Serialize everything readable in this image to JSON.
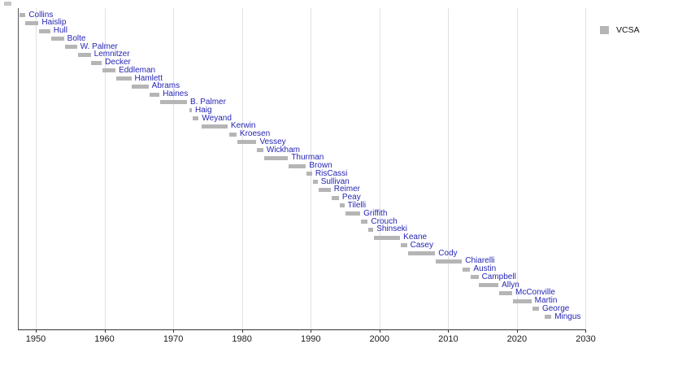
{
  "chart_data": {
    "type": "bar",
    "subtype": "horizontal-timeline-gantt",
    "title": "",
    "xlabel": "",
    "ylabel": "",
    "x_ticks": [
      1950,
      1960,
      1970,
      1980,
      1990,
      2000,
      2010,
      2020,
      2030
    ],
    "xlim": [
      1947.4,
      2030
    ],
    "grid": true,
    "bar_color": "#b5b5b5",
    "label_color": "#2525b5",
    "legend": {
      "label": "VCSA",
      "swatch_color": "#b5b5b5",
      "position": "top-right"
    },
    "series": [
      {
        "name": "VCSA",
        "bars": [
          {
            "label": "Collins",
            "start": 1947.6,
            "end": 1948.5
          },
          {
            "label": "Haislip",
            "start": 1948.5,
            "end": 1950.4
          },
          {
            "label": "Hull",
            "start": 1950.5,
            "end": 1952.1
          },
          {
            "label": "Bolte",
            "start": 1952.2,
            "end": 1954.1
          },
          {
            "label": "W. Palmer",
            "start": 1954.2,
            "end": 1956.0
          },
          {
            "label": "Lemnitzer",
            "start": 1956.1,
            "end": 1958.0
          },
          {
            "label": "Decker",
            "start": 1958.1,
            "end": 1959.6
          },
          {
            "label": "Eddleman",
            "start": 1959.7,
            "end": 1961.6
          },
          {
            "label": "Hamlett",
            "start": 1961.7,
            "end": 1963.9
          },
          {
            "label": "Abrams",
            "start": 1964.0,
            "end": 1966.4
          },
          {
            "label": "Haines",
            "start": 1966.5,
            "end": 1968.0
          },
          {
            "label": "B. Palmer",
            "start": 1968.1,
            "end": 1972.0
          },
          {
            "label": "Haig",
            "start": 1972.4,
            "end": 1972.7
          },
          {
            "label": "Weyand",
            "start": 1972.8,
            "end": 1973.7
          },
          {
            "label": "Kerwin",
            "start": 1974.1,
            "end": 1977.9
          },
          {
            "label": "Kroesen",
            "start": 1978.2,
            "end": 1979.2
          },
          {
            "label": "Vessey",
            "start": 1979.3,
            "end": 1982.1
          },
          {
            "label": "Wickham",
            "start": 1982.2,
            "end": 1983.1
          },
          {
            "label": "Thurman",
            "start": 1983.2,
            "end": 1986.7
          },
          {
            "label": "Brown",
            "start": 1986.8,
            "end": 1989.3
          },
          {
            "label": "RisCassi",
            "start": 1989.4,
            "end": 1990.2
          },
          {
            "label": "Sullivan",
            "start": 1990.3,
            "end": 1991.0
          },
          {
            "label": "Reimer",
            "start": 1991.1,
            "end": 1992.9
          },
          {
            "label": "Peay",
            "start": 1993.0,
            "end": 1994.1
          },
          {
            "label": "Tilelli",
            "start": 1994.2,
            "end": 1994.9
          },
          {
            "label": "Griffith",
            "start": 1995.0,
            "end": 1997.2
          },
          {
            "label": "Crouch",
            "start": 1997.3,
            "end": 1998.3
          },
          {
            "label": "Shinseki",
            "start": 1998.4,
            "end": 1999.1
          },
          {
            "label": "Keane",
            "start": 1999.2,
            "end": 2003.0
          },
          {
            "label": "Casey",
            "start": 2003.1,
            "end": 2004.0
          },
          {
            "label": "Cody",
            "start": 2004.2,
            "end": 2008.1
          },
          {
            "label": "Chiarelli",
            "start": 2008.2,
            "end": 2012.0
          },
          {
            "label": "Austin",
            "start": 2012.1,
            "end": 2013.2
          },
          {
            "label": "Campbell",
            "start": 2013.3,
            "end": 2014.4
          },
          {
            "label": "Allyn",
            "start": 2014.5,
            "end": 2017.3
          },
          {
            "label": "McConville",
            "start": 2017.4,
            "end": 2019.3
          },
          {
            "label": "Martin",
            "start": 2019.4,
            "end": 2022.1
          },
          {
            "label": "George",
            "start": 2022.2,
            "end": 2023.2
          },
          {
            "label": "Mingus",
            "start": 2024.0,
            "end": 2025.0
          }
        ]
      }
    ]
  }
}
